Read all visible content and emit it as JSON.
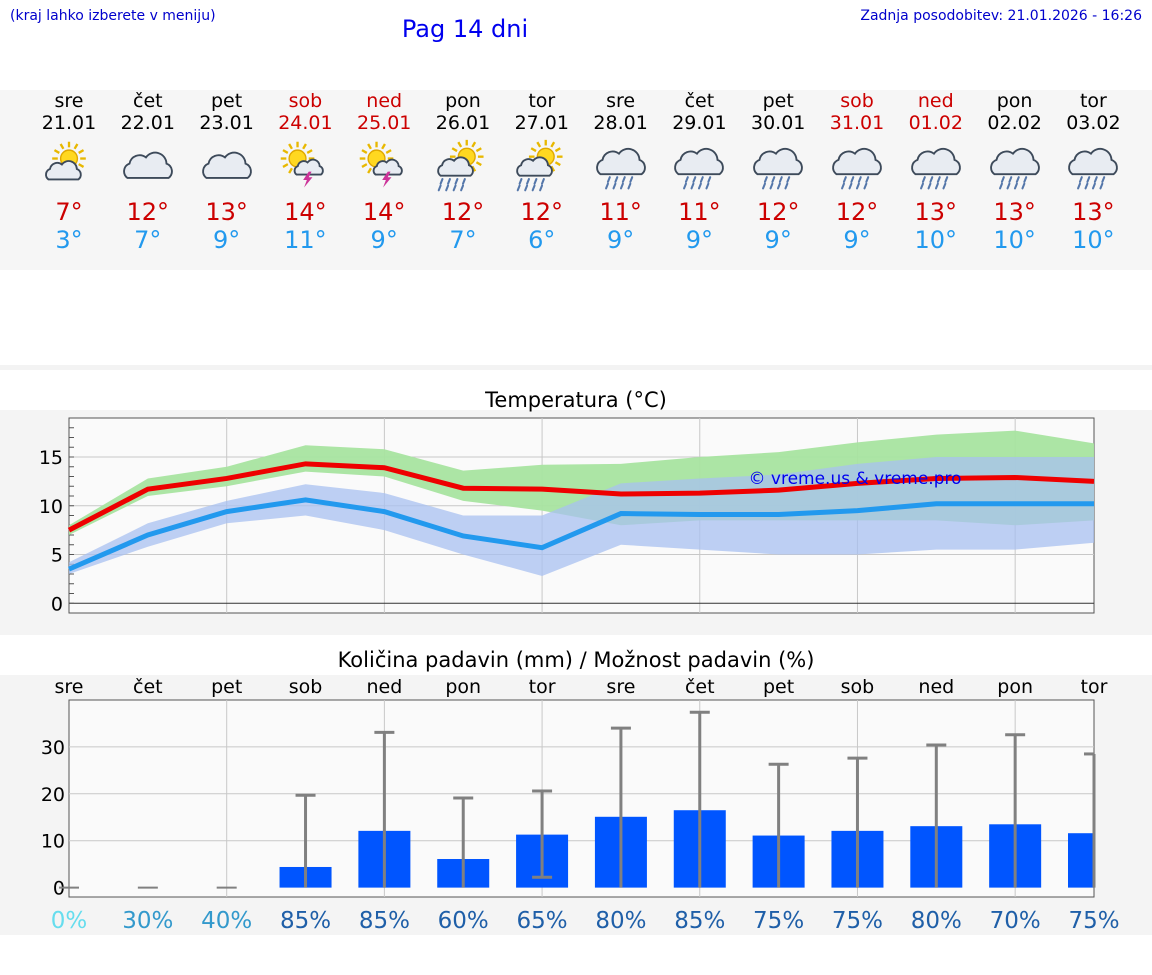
{
  "header": {
    "hint": "(kraj lahko izberete v meniju)",
    "title": "Pag 14 dni",
    "last_update": "Zadnja posodobitev: 21.01.2026 - 16:26"
  },
  "days": [
    {
      "name": "sre",
      "date": "21.01",
      "weekend": false,
      "icon": "sun-cloud-icon",
      "max": "7°",
      "min": "3°"
    },
    {
      "name": "čet",
      "date": "22.01",
      "weekend": false,
      "icon": "cloud-icon",
      "max": "12°",
      "min": "7°"
    },
    {
      "name": "pet",
      "date": "23.01",
      "weekend": false,
      "icon": "cloud-icon",
      "max": "13°",
      "min": "9°"
    },
    {
      "name": "sob",
      "date": "24.01",
      "weekend": true,
      "icon": "sun-thunder-icon",
      "max": "14°",
      "min": "11°"
    },
    {
      "name": "ned",
      "date": "25.01",
      "weekend": true,
      "icon": "sun-thunder-icon",
      "max": "14°",
      "min": "9°"
    },
    {
      "name": "pon",
      "date": "26.01",
      "weekend": false,
      "icon": "sun-rain-icon",
      "max": "12°",
      "min": "7°"
    },
    {
      "name": "tor",
      "date": "27.01",
      "weekend": false,
      "icon": "sun-rain-icon",
      "max": "12°",
      "min": "6°"
    },
    {
      "name": "sre",
      "date": "28.01",
      "weekend": false,
      "icon": "rain-icon",
      "max": "11°",
      "min": "9°"
    },
    {
      "name": "čet",
      "date": "29.01",
      "weekend": false,
      "icon": "rain-icon",
      "max": "11°",
      "min": "9°"
    },
    {
      "name": "pet",
      "date": "30.01",
      "weekend": false,
      "icon": "rain-icon",
      "max": "12°",
      "min": "9°"
    },
    {
      "name": "sob",
      "date": "31.01",
      "weekend": true,
      "icon": "rain-icon",
      "max": "12°",
      "min": "9°"
    },
    {
      "name": "ned",
      "date": "01.02",
      "weekend": true,
      "icon": "rain-icon",
      "max": "13°",
      "min": "10°"
    },
    {
      "name": "pon",
      "date": "02.02",
      "weekend": false,
      "icon": "rain-icon",
      "max": "13°",
      "min": "10°"
    },
    {
      "name": "tor",
      "date": "03.02",
      "weekend": false,
      "icon": "rain-icon",
      "max": "13°",
      "min": "10°"
    }
  ],
  "colors": {
    "max_line": "#ee0000",
    "min_line": "#2299ee",
    "max_band": "#a8e4a0",
    "min_band": "#a8c0f0",
    "overlap": "#78bca8",
    "bar": "#0055ff",
    "err": "#808080",
    "weekend": "#cc0000"
  },
  "chart_data": [
    {
      "type": "line",
      "title": "Temperatura (°C)",
      "x": [
        0,
        1,
        2,
        3,
        4,
        5,
        6,
        7,
        8,
        9,
        10,
        11,
        12,
        13
      ],
      "ylim": [
        -1,
        19
      ],
      "yticks": [
        0,
        5,
        10,
        15
      ],
      "watermark": "© vreme.us & vreme.pro",
      "series": [
        {
          "name": "max",
          "values": [
            7.5,
            11.7,
            12.8,
            14.3,
            13.9,
            11.8,
            11.7,
            11.2,
            11.3,
            11.6,
            12.3,
            12.8,
            12.9,
            12.5
          ],
          "band_low": [
            7.0,
            11.0,
            12.0,
            13.5,
            13.0,
            10.5,
            9.5,
            8.0,
            8.5,
            8.5,
            8.5,
            8.5,
            8.0,
            8.5
          ],
          "band_high": [
            8.0,
            12.8,
            14.0,
            16.2,
            15.8,
            13.6,
            14.2,
            14.3,
            15.0,
            15.5,
            16.5,
            17.3,
            17.7,
            16.4
          ]
        },
        {
          "name": "min",
          "values": [
            3.5,
            7.0,
            9.4,
            10.6,
            9.4,
            6.9,
            5.7,
            9.2,
            9.1,
            9.1,
            9.5,
            10.2,
            10.2,
            10.2
          ],
          "band_low": [
            3.0,
            5.8,
            8.2,
            9.0,
            7.5,
            5.0,
            2.8,
            6.0,
            5.5,
            5.0,
            5.0,
            5.5,
            5.5,
            6.2
          ],
          "band_high": [
            4.2,
            8.2,
            10.5,
            12.2,
            11.3,
            9.0,
            9.0,
            12.3,
            12.8,
            13.2,
            14.3,
            15.0,
            15.0,
            15.0
          ]
        }
      ]
    },
    {
      "type": "bar",
      "title": "Količina padavin (mm) / Možnost padavin (%)",
      "categories": [
        "sre",
        "čet",
        "pet",
        "sob",
        "ned",
        "pon",
        "tor",
        "sre",
        "čet",
        "pet",
        "sob",
        "ned",
        "pon",
        "tor"
      ],
      "values": [
        0,
        0,
        0,
        4.4,
        12.1,
        6.1,
        11.3,
        15.1,
        16.5,
        11.1,
        12.1,
        13.1,
        13.5,
        11.6
      ],
      "err_low": [
        0,
        0,
        0,
        0,
        0,
        0,
        2.2,
        0,
        0,
        0,
        0,
        0,
        0,
        0
      ],
      "err_high": [
        0,
        0,
        0,
        19.7,
        33.1,
        19.1,
        20.6,
        34.0,
        37.4,
        26.3,
        27.6,
        30.4,
        32.6,
        28.5
      ],
      "ylim": [
        -2,
        40
      ],
      "yticks": [
        0,
        10,
        20,
        30
      ],
      "probabilities": [
        "0%",
        "30%",
        "40%",
        "85%",
        "85%",
        "60%",
        "65%",
        "80%",
        "85%",
        "75%",
        "75%",
        "80%",
        "70%",
        "75%"
      ],
      "prob_colors": [
        "#66ddee",
        "#3399cc",
        "#3399cc",
        "#1f5fa8",
        "#1f5fa8",
        "#1f5fa8",
        "#1f5fa8",
        "#1f5fa8",
        "#1f5fa8",
        "#1f5fa8",
        "#1f5fa8",
        "#1f5fa8",
        "#1f5fa8",
        "#1f5fa8"
      ]
    }
  ]
}
